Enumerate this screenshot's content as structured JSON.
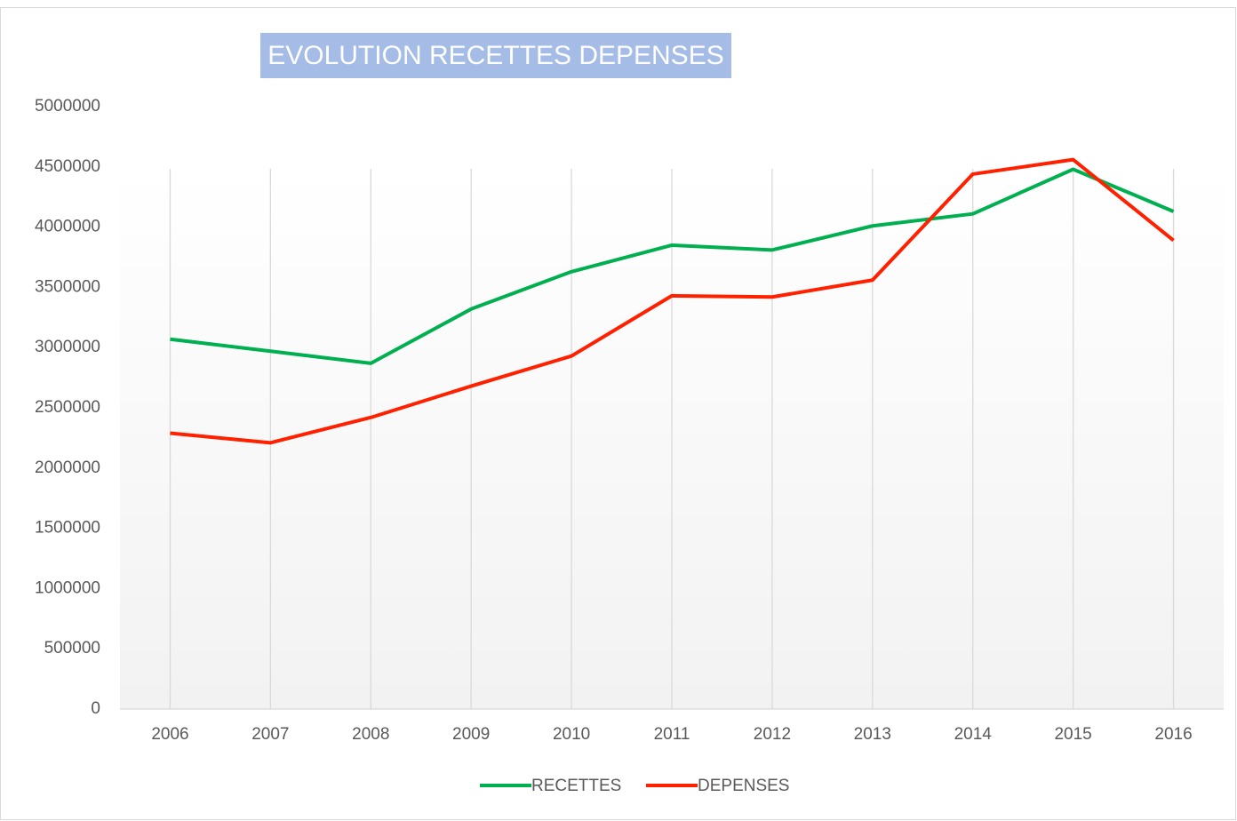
{
  "chart_data": {
    "type": "line",
    "title": "EVOLUTION RECETTES DEPENSES",
    "categories": [
      "2006",
      "2007",
      "2008",
      "2009",
      "2010",
      "2011",
      "2012",
      "2013",
      "2014",
      "2015",
      "2016"
    ],
    "series": [
      {
        "name": "RECETTES",
        "color": "#00b050",
        "values": [
          3070000,
          2970000,
          2870000,
          3320000,
          3630000,
          3850000,
          3810000,
          4010000,
          4110000,
          4480000,
          4130000
        ]
      },
      {
        "name": "DEPENSES",
        "color": "#ff2000",
        "values": [
          2290000,
          2210000,
          2420000,
          2680000,
          2930000,
          3430000,
          3420000,
          3560000,
          4440000,
          4560000,
          3890000
        ]
      }
    ],
    "ylim": [
      0,
      5000000
    ],
    "yticks": [
      0,
      500000,
      1000000,
      1500000,
      2000000,
      2500000,
      3000000,
      3500000,
      4000000,
      4500000,
      5000000
    ],
    "grid": true,
    "legend": "bottom"
  }
}
